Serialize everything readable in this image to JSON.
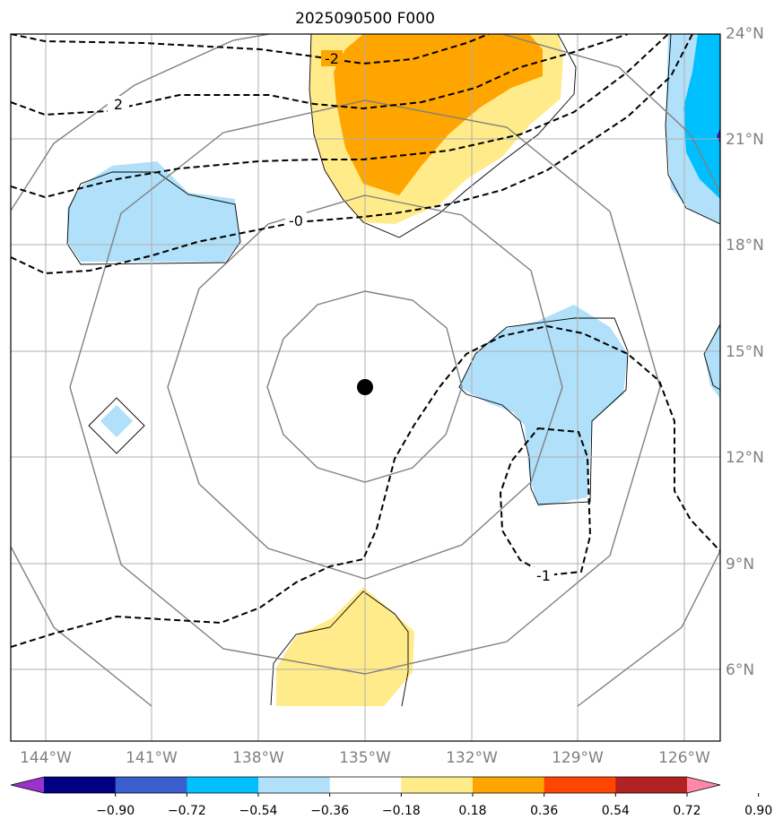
{
  "title": "2025090500 F000",
  "lat_labels": [
    "24°N",
    "21°N",
    "18°N",
    "15°N",
    "12°N",
    "9°N",
    "6°N"
  ],
  "lon_labels": [
    "144°W",
    "141°W",
    "138°W",
    "135°W",
    "132°W",
    "129°W",
    "126°W"
  ],
  "contour_labels": [
    "-2",
    "2",
    "-0",
    "-1"
  ],
  "colorbar": {
    "ticks": [
      "−0.90",
      "−0.72",
      "−0.54",
      "−0.36",
      "−0.18",
      "0.18",
      "0.36",
      "0.54",
      "0.72",
      "0.90"
    ],
    "colors": [
      "#9933cc",
      "#000080",
      "#3a5fcd",
      "#00bfff",
      "#b0e0fa",
      "#ffffff",
      "#ffeb8a",
      "#ffa500",
      "#ff4500",
      "#b22222",
      "#ff88aa"
    ]
  },
  "center_marker": {
    "lon": -135,
    "lat": 14
  },
  "fill_colors": {
    "light_blue": "#b0e0fa",
    "blue": "#00bfff",
    "light_yellow": "#ffeb8a",
    "orange": "#ffa500"
  }
}
